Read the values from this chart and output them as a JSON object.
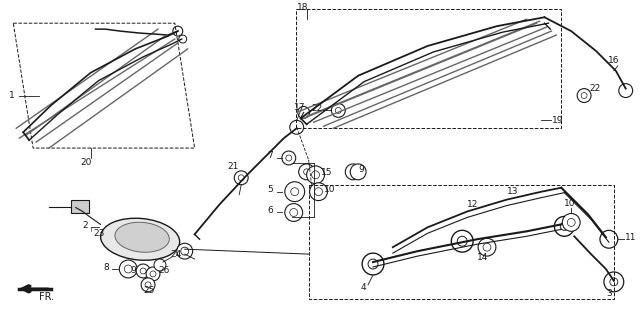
{
  "bg_color": "#ffffff",
  "line_color": "#1a1a1a",
  "gray_color": "#666666",
  "dark_gray": "#333333"
}
